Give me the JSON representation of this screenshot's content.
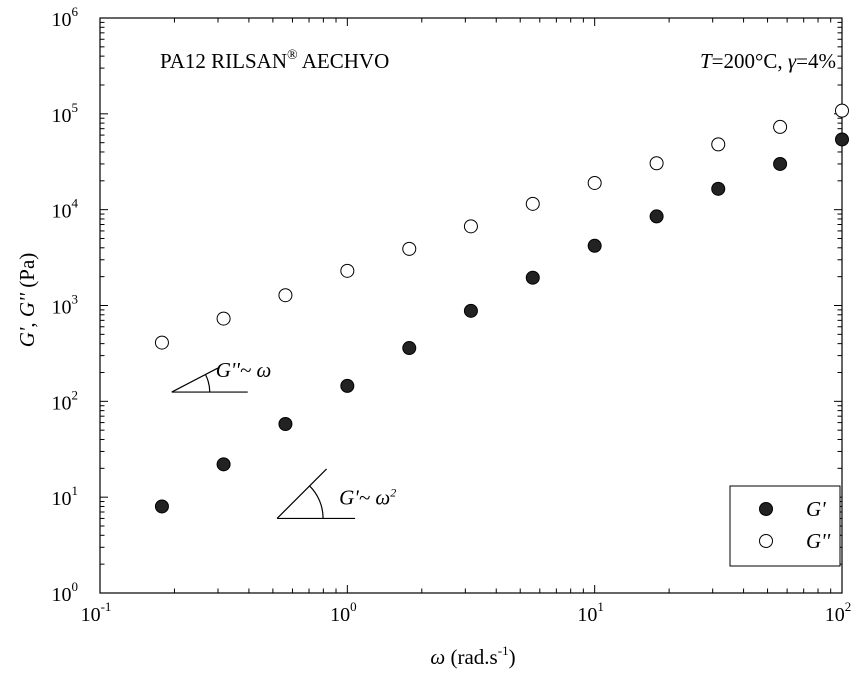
{
  "chart_data": {
    "type": "scatter",
    "title": "PA12 RILSAN",
    "title_superscript": "®",
    "title_suffix": " AECHVO",
    "condition": {
      "t_symbol": "T",
      "t_value": "=200°C, ",
      "gamma_symbol": "γ",
      "gamma_value": "=4%"
    },
    "xlabel": {
      "symbol": "ω",
      "unit": " (rad.s",
      "exponent": "-1",
      "close": ")"
    },
    "ylabel": {
      "g1": "G'",
      "sep": ", ",
      "g2": "G''",
      "unit": " (Pa)"
    },
    "x_scale": "log",
    "y_scale": "log",
    "xlim": [
      0.1,
      100
    ],
    "ylim": [
      1,
      1000000
    ],
    "x_ticks": [
      {
        "base": "10",
        "exp": "-1"
      },
      {
        "base": "10",
        "exp": "0"
      },
      {
        "base": "10",
        "exp": "1"
      },
      {
        "base": "10",
        "exp": "2"
      }
    ],
    "y_ticks": [
      {
        "base": "10",
        "exp": "0"
      },
      {
        "base": "10",
        "exp": "1"
      },
      {
        "base": "10",
        "exp": "2"
      },
      {
        "base": "10",
        "exp": "3"
      },
      {
        "base": "10",
        "exp": "4"
      },
      {
        "base": "10",
        "exp": "5"
      },
      {
        "base": "10",
        "exp": "6"
      }
    ],
    "x": [
      0.178,
      0.316,
      0.562,
      1.0,
      1.78,
      3.16,
      5.62,
      10.0,
      17.8,
      31.6,
      56.2,
      100
    ],
    "series": [
      {
        "name": "G'",
        "marker": "filled-circle",
        "values": [
          8.0,
          22,
          58,
          145,
          360,
          880,
          1950,
          4200,
          8500,
          16500,
          30000,
          54000
        ]
      },
      {
        "name": "G''",
        "marker": "open-circle",
        "values": [
          410,
          730,
          1280,
          2300,
          3900,
          6700,
          11500,
          19000,
          30500,
          48000,
          73000,
          108000
        ]
      }
    ],
    "legend_position": "bottom-right",
    "annotations": [
      {
        "text": "G''~ ω",
        "slope": 1,
        "anchor_x": 0.195,
        "anchor_y": 125
      },
      {
        "text": "G'~ ω",
        "exponent": "2",
        "slope": 2,
        "anchor_x": 0.52,
        "anchor_y": 6
      }
    ],
    "grid": false
  }
}
